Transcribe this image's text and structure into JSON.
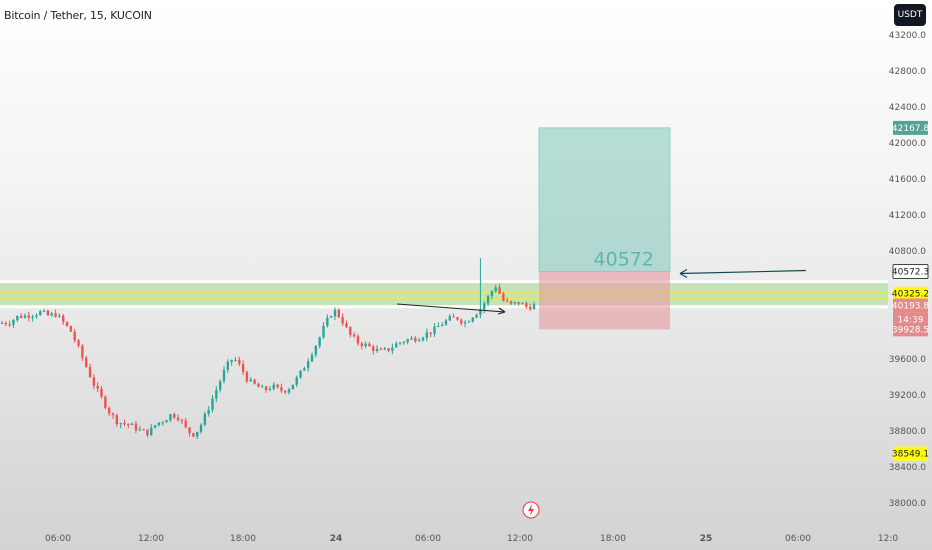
{
  "header": {
    "symbol_title": "Bitcoin / Tether, 15, KUCOIN",
    "currency_button": "USDT"
  },
  "price_axis": {
    "ticks": [
      "43200.0",
      "42800.0",
      "42400.0",
      "42000.0",
      "41600.0",
      "41200.0",
      "40800.0",
      "39600.0",
      "39200.0",
      "38800.0",
      "38400.0",
      "38000.0"
    ],
    "tick_values": [
      43200,
      42800,
      42400,
      42000,
      41600,
      41200,
      40800,
      39600,
      39200,
      38800,
      38400,
      38000
    ],
    "labels": [
      {
        "text": "42167.8",
        "value": 42167.8,
        "color": "#56a292",
        "text_color": "#ffffff"
      },
      {
        "text": "40572.3",
        "value": 40572.3,
        "color": "#ffffff",
        "text_color": "#222222",
        "outlined": true
      },
      {
        "text": "40325.2",
        "value": 40325.2,
        "color": "#ffff00",
        "text_color": "#222222"
      },
      {
        "text": "40193.8",
        "value": 40193.8,
        "color": "#e58a8a",
        "text_color": "#ffffff",
        "countdown": "14:39"
      },
      {
        "text": "39928.5",
        "value": 39928.5,
        "color": "#e58a8a",
        "text_color": "#ffffff"
      },
      {
        "text": "38549.1",
        "value": 38549.1,
        "color": "#ffff00",
        "text_color": "#222222"
      }
    ]
  },
  "time_axis": {
    "ticks": [
      "06:00",
      "12:00",
      "18:00",
      "24",
      "06:00",
      "12:00",
      "18:00",
      "25",
      "06:00",
      "12:0"
    ]
  },
  "drawings": {
    "position_label": "40572",
    "entry": 40572,
    "target": 42167.8,
    "stop": 39928.5,
    "zone_top": 40460,
    "zone_bottom": 40180,
    "zone_mid": 40325.2,
    "support_line": 38549.1
  },
  "chart_data": {
    "type": "candlestick",
    "title": "Bitcoin / Tether, 15, KUCOIN",
    "ylim": [
      37800,
      43300
    ],
    "y_scale": "linear",
    "grid": false,
    "colors": {
      "up": "#26a69a",
      "down": "#ef5350",
      "zone": "#b9e0a7",
      "highlight": "#f5e642"
    },
    "close_path": [
      40000,
      40010,
      40070,
      40080,
      40100,
      40120,
      40080,
      40100,
      40000,
      39900,
      39700,
      39500,
      39300,
      39150,
      39000,
      38900,
      38880,
      38850,
      38800,
      38780,
      38880,
      38920,
      38990,
      38950,
      38800,
      38760,
      38900,
      39100,
      39300,
      39500,
      39620,
      39500,
      39350,
      39300,
      39250,
      39300,
      39250,
      39260,
      39350,
      39480,
      39650,
      39800,
      40000,
      40150,
      40050,
      39880,
      39790,
      39760,
      39720,
      39680,
      39700,
      39760,
      39800,
      39820,
      39840,
      39880,
      39920,
      39990,
      40040,
      40060,
      40000,
      40080,
      40150,
      40280,
      40420,
      40250,
      40200,
      40230,
      40180,
      40193.8
    ]
  }
}
